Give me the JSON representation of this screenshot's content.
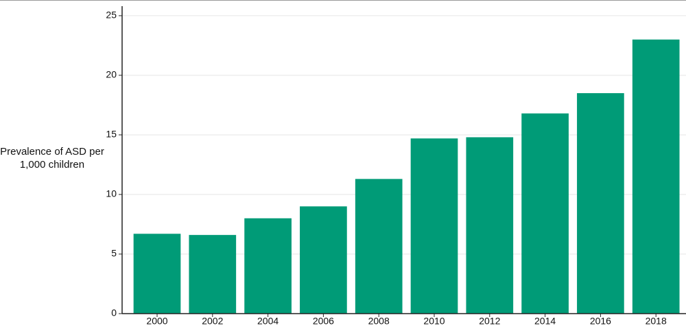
{
  "chart_data": {
    "type": "bar",
    "ylabel": "Prevalence of ASD per 1,000 children",
    "categories": [
      "2000",
      "2002",
      "2004",
      "2006",
      "2008",
      "2010",
      "2012",
      "2014",
      "2016",
      "2018"
    ],
    "values": [
      6.7,
      6.6,
      8.0,
      9.0,
      11.3,
      14.7,
      14.8,
      16.8,
      18.5,
      23.0
    ],
    "color": "#009b77",
    "ylim": [
      0,
      25.8
    ],
    "yticks": [
      0,
      5,
      10,
      15,
      20,
      25
    ],
    "grid": true
  }
}
